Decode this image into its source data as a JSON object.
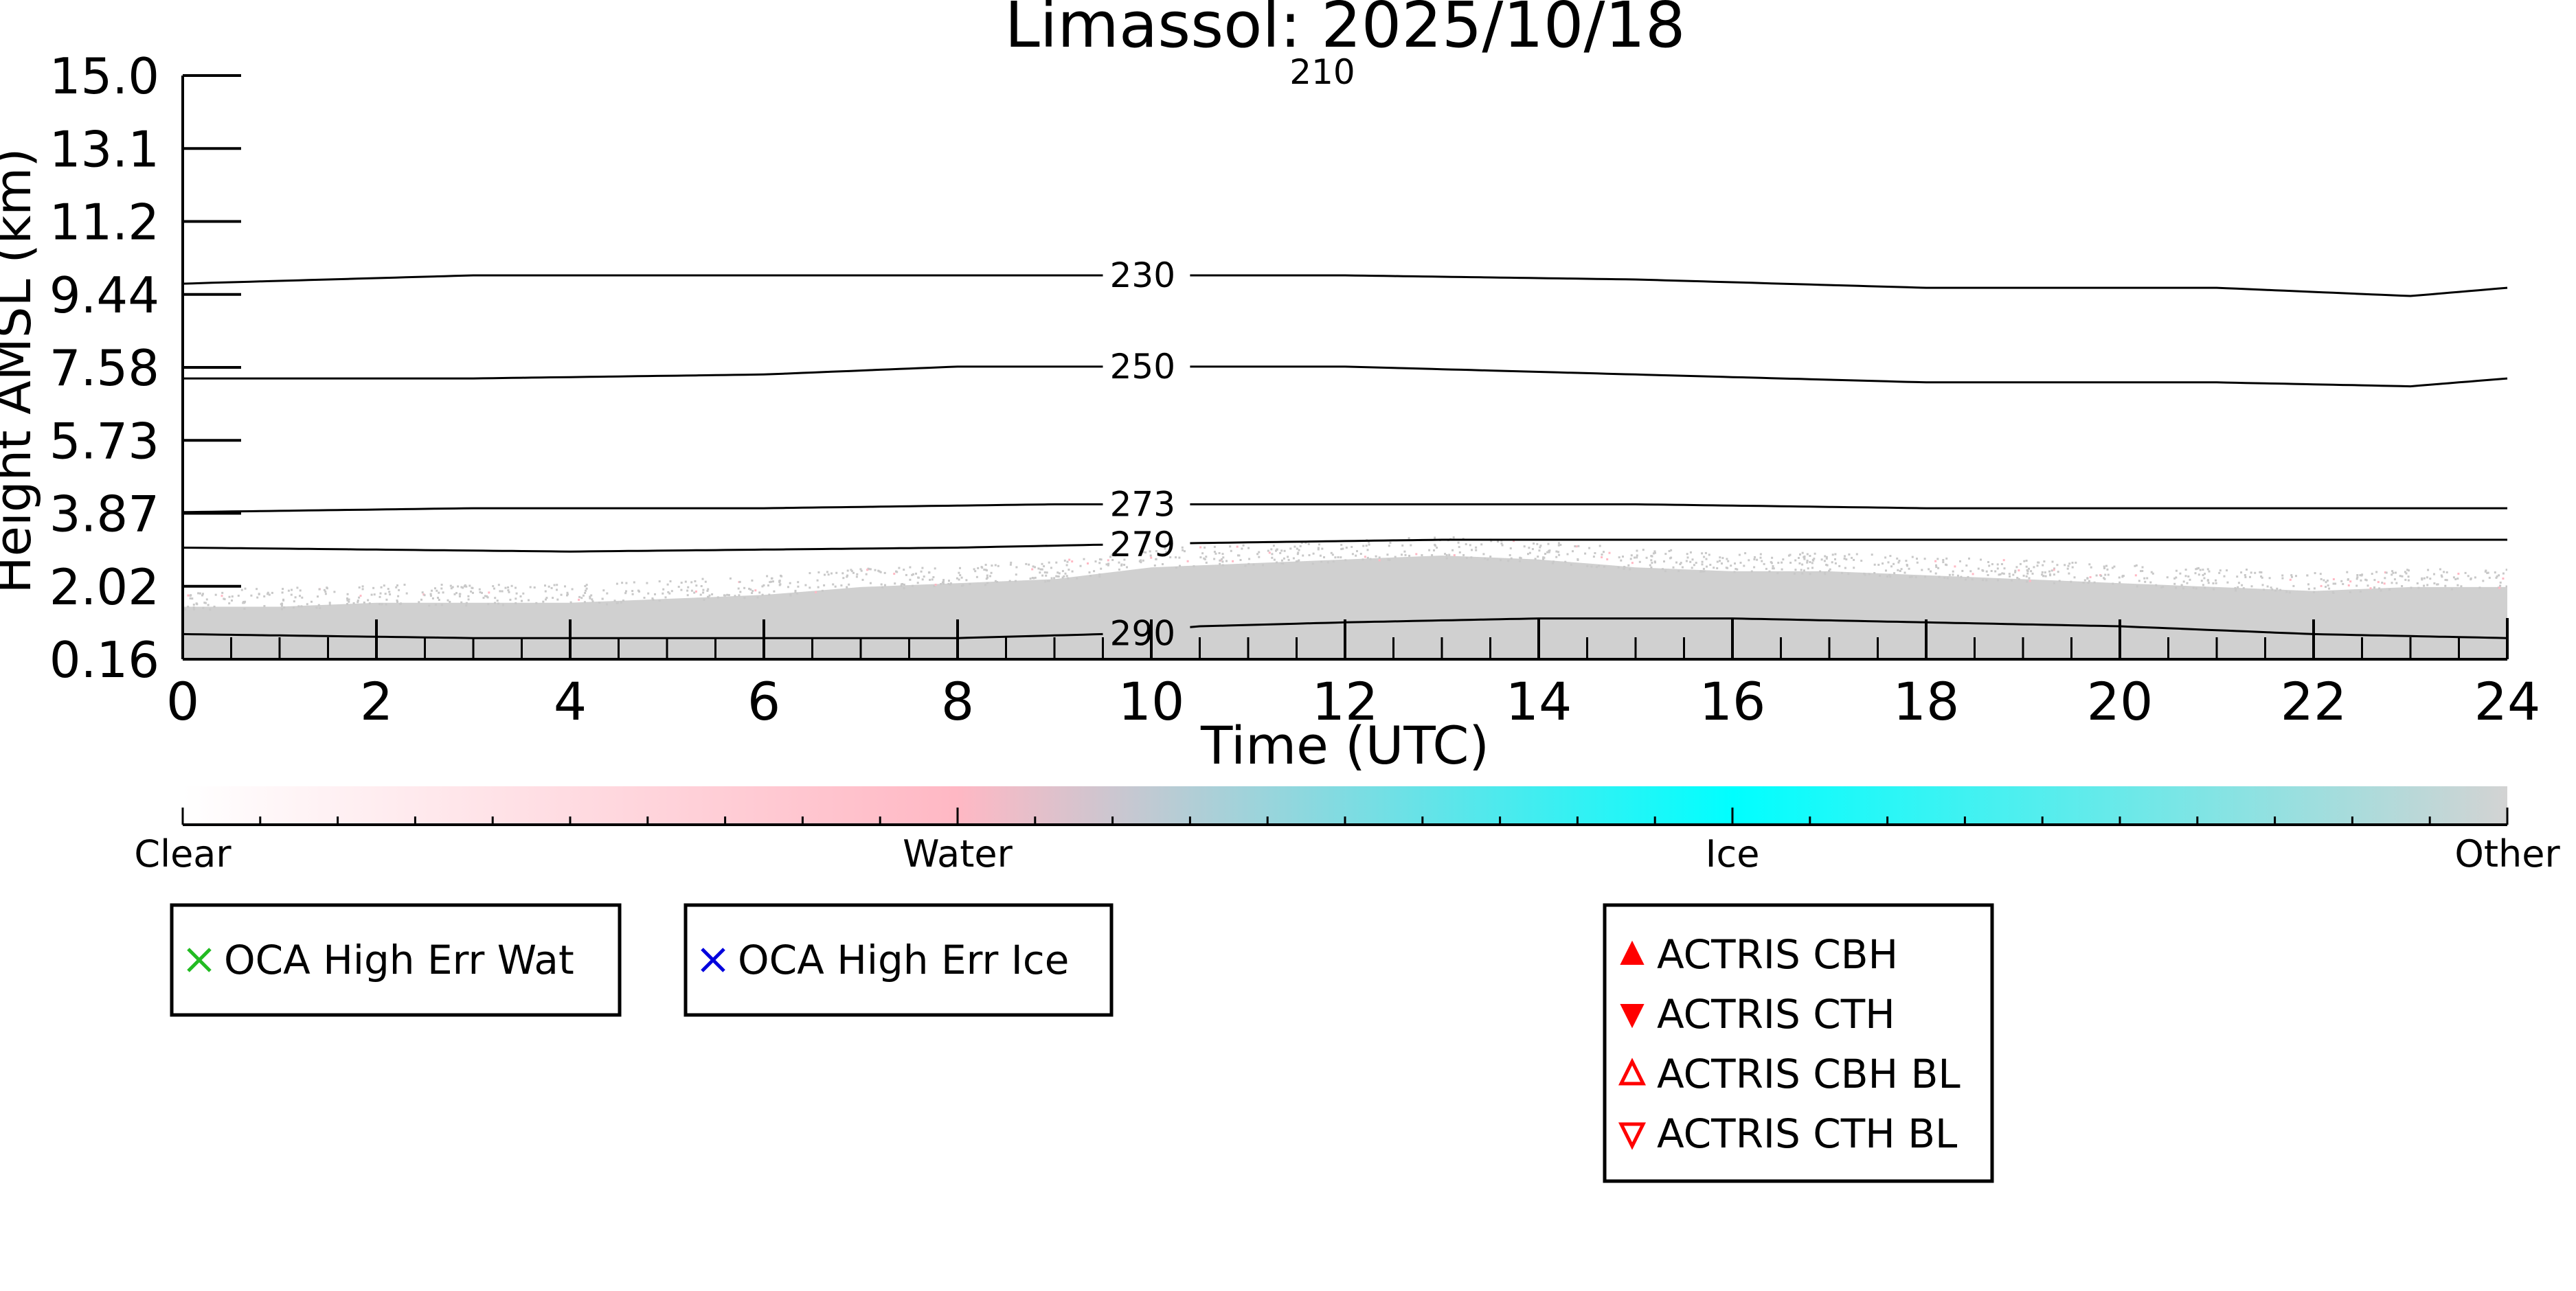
{
  "chart_data": {
    "type": "heatmap",
    "title": "Limassol: 2025/10/18",
    "xlabel": "Time (UTC)",
    "ylabel": "Height AMSL (km)",
    "xlim": [
      0,
      24
    ],
    "ylim": [
      0.16,
      15.0
    ],
    "x_ticks": [
      0,
      2,
      4,
      6,
      8,
      10,
      12,
      14,
      16,
      18,
      20,
      22,
      24
    ],
    "y_ticks": [
      "0.16",
      "2.02",
      "3.87",
      "5.73",
      "7.58",
      "9.44",
      "11.2",
      "13.1",
      "15.0"
    ],
    "y_tick_values": [
      0.16,
      2.02,
      3.87,
      5.73,
      7.58,
      9.44,
      11.2,
      13.1,
      15.0
    ],
    "cloud_top": {
      "times": [
        0,
        1,
        2,
        3,
        4,
        5,
        6,
        7,
        8,
        9,
        10,
        11,
        12,
        13,
        14,
        15,
        16,
        17,
        18,
        19,
        20,
        21,
        22,
        23,
        24
      ],
      "heights_km": [
        1.5,
        1.5,
        1.6,
        1.6,
        1.6,
        1.7,
        1.8,
        2.0,
        2.1,
        2.2,
        2.5,
        2.6,
        2.7,
        2.8,
        2.7,
        2.5,
        2.4,
        2.4,
        2.3,
        2.2,
        2.1,
        2.0,
        1.9,
        2.0,
        2.0
      ]
    },
    "isotherms": [
      {
        "label": "230",
        "times": [
          0,
          3,
          6,
          9,
          12,
          15,
          18,
          21,
          23,
          24
        ],
        "heights_km": [
          9.7,
          9.9,
          9.9,
          9.9,
          9.9,
          9.8,
          9.6,
          9.6,
          9.4,
          9.6
        ]
      },
      {
        "label": "250",
        "times": [
          0,
          3,
          6,
          8,
          10,
          12,
          15,
          18,
          21,
          23,
          24
        ],
        "heights_km": [
          7.3,
          7.3,
          7.4,
          7.6,
          7.6,
          7.6,
          7.4,
          7.2,
          7.2,
          7.1,
          7.3
        ]
      },
      {
        "label": "273",
        "times": [
          0,
          3,
          6,
          9,
          12,
          15,
          18,
          21,
          24
        ],
        "heights_km": [
          3.9,
          4.0,
          4.0,
          4.1,
          4.1,
          4.1,
          4.0,
          4.0,
          4.0
        ]
      },
      {
        "label": "279",
        "times": [
          0,
          4,
          8,
          10,
          13,
          16,
          20,
          24
        ],
        "heights_km": [
          3.0,
          2.9,
          3.0,
          3.1,
          3.2,
          3.2,
          3.2,
          3.2
        ]
      },
      {
        "label": "290",
        "times": [
          0,
          3,
          6,
          8,
          9.5,
          10.5,
          12,
          14,
          16,
          18,
          20,
          22,
          24
        ],
        "heights_km": [
          0.8,
          0.7,
          0.7,
          0.7,
          0.8,
          1.0,
          1.1,
          1.2,
          1.2,
          1.1,
          1.0,
          0.8,
          0.7
        ]
      }
    ],
    "isotherm_label_time": 9.6,
    "top_partial_label": "210",
    "colorbar": {
      "labels": [
        "Clear",
        "Water",
        "Ice",
        "Other"
      ],
      "stops": [
        "#ffffff",
        "#ffb8c4",
        "#00ffff",
        "#d3d3d3"
      ]
    },
    "legend_groups": [
      {
        "entries": [
          {
            "marker": "x",
            "color": "#22bb22",
            "label": "OCA High Err Wat"
          }
        ]
      },
      {
        "entries": [
          {
            "marker": "x",
            "color": "#0000dd",
            "label": "OCA High Err Ice"
          }
        ]
      },
      {
        "entries": [
          {
            "marker": "triangle-up-filled",
            "color": "#ff0000",
            "label": "ACTRIS CBH"
          },
          {
            "marker": "triangle-down-filled",
            "color": "#ff0000",
            "label": "ACTRIS CTH"
          },
          {
            "marker": "triangle-up-open",
            "color": "#ff0000",
            "label": "ACTRIS CBH BL"
          },
          {
            "marker": "triangle-down-open",
            "color": "#ff0000",
            "label": "ACTRIS CTH BL"
          }
        ]
      }
    ],
    "colors": {
      "cloud": "#d0d0d0",
      "cloud_speckle": "#c8c8c8",
      "water_speckle": "#ffb8c4",
      "axis": "#000000"
    }
  }
}
